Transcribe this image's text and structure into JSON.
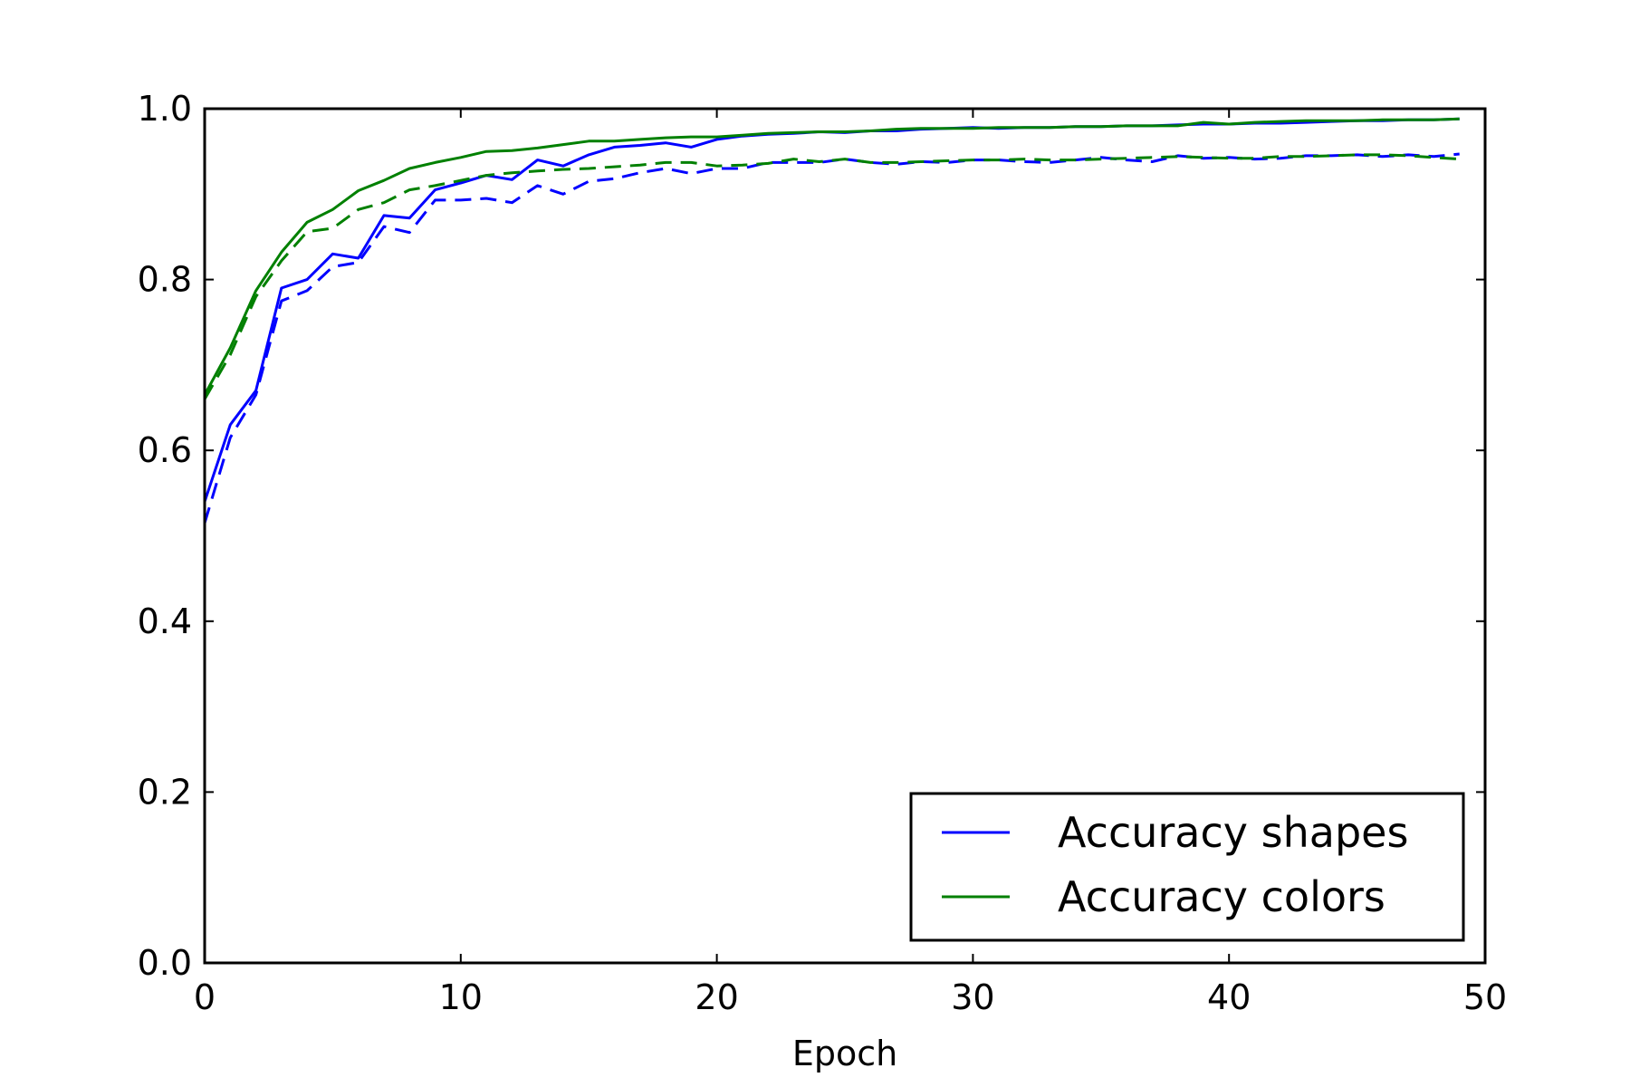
{
  "chart_data": {
    "type": "line",
    "title": "",
    "xlabel": "Epoch",
    "ylabel": "",
    "xlim": [
      0,
      50
    ],
    "ylim": [
      0.0,
      1.0
    ],
    "xticks": [
      "0",
      "10",
      "20",
      "30",
      "40",
      "50"
    ],
    "yticks": [
      "0.0",
      "0.2",
      "0.4",
      "0.6",
      "0.8",
      "1.0"
    ],
    "grid": false,
    "legend_position": "lower-right",
    "legend": [
      {
        "label": "Accuracy shapes",
        "color": "#0000ff"
      },
      {
        "label": "Accuracy colors",
        "color": "#008000"
      }
    ],
    "x": [
      0,
      1,
      2,
      3,
      4,
      5,
      6,
      7,
      8,
      9,
      10,
      11,
      12,
      13,
      14,
      15,
      16,
      17,
      18,
      19,
      20,
      21,
      22,
      23,
      24,
      25,
      26,
      27,
      28,
      29,
      30,
      31,
      32,
      33,
      34,
      35,
      36,
      37,
      38,
      39,
      40,
      41,
      42,
      43,
      44,
      45,
      46,
      47,
      48,
      49
    ],
    "series": [
      {
        "color": "#0000ff",
        "dash": "solid",
        "values": [
          0.54,
          0.63,
          0.67,
          0.79,
          0.8,
          0.83,
          0.825,
          0.875,
          0.872,
          0.905,
          0.913,
          0.922,
          0.917,
          0.94,
          0.933,
          0.946,
          0.955,
          0.957,
          0.96,
          0.955,
          0.964,
          0.968,
          0.97,
          0.971,
          0.973,
          0.972,
          0.974,
          0.974,
          0.976,
          0.977,
          0.978,
          0.977,
          0.978,
          0.978,
          0.979,
          0.979,
          0.98,
          0.98,
          0.981,
          0.982,
          0.982,
          0.983,
          0.983,
          0.984,
          0.985,
          0.986,
          0.986,
          0.987,
          0.987,
          0.988
        ]
      },
      {
        "color": "#0000ff",
        "dash": "dashed",
        "values": [
          0.515,
          0.615,
          0.665,
          0.775,
          0.787,
          0.815,
          0.82,
          0.862,
          0.855,
          0.893,
          0.893,
          0.895,
          0.89,
          0.91,
          0.9,
          0.915,
          0.918,
          0.925,
          0.93,
          0.924,
          0.93,
          0.93,
          0.937,
          0.937,
          0.937,
          0.941,
          0.937,
          0.935,
          0.938,
          0.937,
          0.94,
          0.94,
          0.938,
          0.937,
          0.94,
          0.943,
          0.94,
          0.938,
          0.945,
          0.942,
          0.943,
          0.941,
          0.942,
          0.945,
          0.945,
          0.946,
          0.944,
          0.946,
          0.944,
          0.947
        ]
      },
      {
        "color": "#008000",
        "dash": "solid",
        "values": [
          0.665,
          0.72,
          0.787,
          0.832,
          0.867,
          0.882,
          0.904,
          0.916,
          0.93,
          0.937,
          0.943,
          0.95,
          0.951,
          0.954,
          0.958,
          0.962,
          0.962,
          0.964,
          0.966,
          0.967,
          0.967,
          0.969,
          0.971,
          0.972,
          0.973,
          0.973,
          0.974,
          0.976,
          0.977,
          0.977,
          0.977,
          0.978,
          0.978,
          0.978,
          0.979,
          0.979,
          0.98,
          0.98,
          0.98,
          0.984,
          0.982,
          0.984,
          0.985,
          0.986,
          0.986,
          0.986,
          0.987,
          0.987,
          0.987,
          0.988
        ]
      },
      {
        "color": "#008000",
        "dash": "dashed",
        "values": [
          0.66,
          0.712,
          0.78,
          0.822,
          0.856,
          0.86,
          0.882,
          0.89,
          0.905,
          0.91,
          0.916,
          0.922,
          0.925,
          0.927,
          0.929,
          0.93,
          0.932,
          0.934,
          0.937,
          0.937,
          0.933,
          0.934,
          0.936,
          0.941,
          0.938,
          0.941,
          0.937,
          0.937,
          0.938,
          0.939,
          0.94,
          0.94,
          0.941,
          0.94,
          0.94,
          0.941,
          0.942,
          0.943,
          0.944,
          0.943,
          0.942,
          0.942,
          0.944,
          0.944,
          0.945,
          0.946,
          0.946,
          0.945,
          0.943,
          0.941
        ]
      }
    ]
  }
}
